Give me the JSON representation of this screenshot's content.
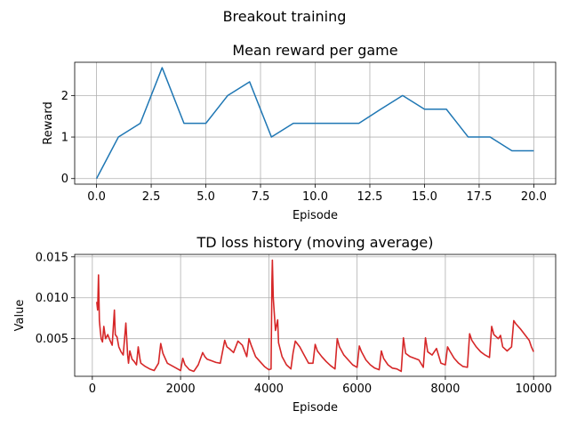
{
  "figure": {
    "title": "Breakout training"
  },
  "chart_data": [
    {
      "type": "line",
      "title": "Mean reward per game",
      "xlabel": "Episode",
      "ylabel": "Reward",
      "xlim": [
        -1.0,
        21.0
      ],
      "ylim": [
        -0.134,
        2.8
      ],
      "grid": true,
      "xticks": [
        0.0,
        2.5,
        5.0,
        7.5,
        10.0,
        12.5,
        15.0,
        17.5,
        20.0
      ],
      "xtick_labels": [
        "0.0",
        "2.5",
        "5.0",
        "7.5",
        "10.0",
        "12.5",
        "15.0",
        "17.5",
        "20.0"
      ],
      "yticks": [
        0,
        1,
        2
      ],
      "ytick_labels": [
        "0",
        "1",
        "2"
      ],
      "series": [
        {
          "color": "#1f77b4",
          "x": [
            0,
            1,
            2,
            3,
            4,
            5,
            6,
            7,
            8,
            9,
            10,
            11,
            12,
            13,
            14,
            15,
            16,
            17,
            18,
            19,
            20
          ],
          "values": [
            0,
            1.0,
            1.33,
            2.67,
            1.33,
            1.33,
            2.0,
            2.33,
            1.0,
            1.33,
            1.33,
            1.33,
            1.33,
            1.67,
            2.0,
            1.67,
            1.67,
            1.0,
            1.0,
            0.67,
            0.67
          ]
        }
      ]
    },
    {
      "type": "line",
      "title": "TD loss history (moving average)",
      "xlabel": "Episode",
      "ylabel": "Value",
      "xlim": [
        -400,
        10500
      ],
      "ylim": [
        0.0004,
        0.0153
      ],
      "grid": true,
      "xticks": [
        0,
        2000,
        4000,
        6000,
        8000,
        10000
      ],
      "xtick_labels": [
        "0",
        "2000",
        "4000",
        "6000",
        "8000",
        "10000"
      ],
      "yticks": [
        0.005,
        0.01,
        0.015
      ],
      "ytick_labels": [
        "0.005",
        "0.010",
        "0.015"
      ],
      "series": [
        {
          "color": "#d62728",
          "x": [
            100,
            120,
            140,
            160,
            180,
            200,
            230,
            260,
            300,
            350,
            400,
            450,
            500,
            520,
            560,
            600,
            650,
            700,
            760,
            800,
            820,
            850,
            900,
            950,
            1000,
            1040,
            1080,
            1100,
            1200,
            1300,
            1400,
            1500,
            1550,
            1600,
            1700,
            1800,
            1900,
            2000,
            2050,
            2100,
            2200,
            2300,
            2400,
            2500,
            2550,
            2600,
            2700,
            2800,
            2900,
            3000,
            3050,
            3100,
            3200,
            3300,
            3400,
            3500,
            3550,
            3600,
            3700,
            3800,
            3900,
            4000,
            4050,
            4070,
            4080,
            4100,
            4150,
            4200,
            4220,
            4300,
            4400,
            4500,
            4550,
            4600,
            4700,
            4800,
            4900,
            5000,
            5050,
            5100,
            5200,
            5300,
            5400,
            5500,
            5550,
            5600,
            5700,
            5800,
            5900,
            6000,
            6050,
            6100,
            6200,
            6300,
            6400,
            6500,
            6550,
            6600,
            6700,
            6800,
            6900,
            7000,
            7050,
            7100,
            7200,
            7300,
            7400,
            7500,
            7550,
            7600,
            7700,
            7800,
            7900,
            8000,
            8050,
            8100,
            8200,
            8300,
            8400,
            8500,
            8550,
            8600,
            8700,
            8800,
            8900,
            9000,
            9050,
            9100,
            9200,
            9250,
            9300,
            9400,
            9500,
            9550,
            9600,
            9700,
            9800,
            9900,
            9950,
            10000
          ],
          "values": [
            0.0095,
            0.0085,
            0.0128,
            0.0072,
            0.006,
            0.005,
            0.0046,
            0.0065,
            0.005,
            0.0055,
            0.0048,
            0.0042,
            0.0085,
            0.0055,
            0.0052,
            0.004,
            0.0034,
            0.003,
            0.0069,
            0.003,
            0.002,
            0.0035,
            0.0025,
            0.0022,
            0.0018,
            0.004,
            0.0025,
            0.002,
            0.0016,
            0.0013,
            0.0011,
            0.002,
            0.0044,
            0.0032,
            0.002,
            0.0017,
            0.0014,
            0.0011,
            0.0026,
            0.0018,
            0.0012,
            0.001,
            0.0018,
            0.0033,
            0.0028,
            0.0025,
            0.0023,
            0.0021,
            0.002,
            0.0048,
            0.004,
            0.0038,
            0.0033,
            0.0047,
            0.0042,
            0.0028,
            0.005,
            0.0042,
            0.0028,
            0.0022,
            0.0016,
            0.0012,
            0.0013,
            0.012,
            0.0146,
            0.01,
            0.006,
            0.0073,
            0.0045,
            0.0028,
            0.0018,
            0.0013,
            0.0033,
            0.0047,
            0.004,
            0.003,
            0.002,
            0.002,
            0.0043,
            0.0035,
            0.0028,
            0.0022,
            0.0017,
            0.0013,
            0.005,
            0.004,
            0.003,
            0.0024,
            0.0018,
            0.0015,
            0.0041,
            0.0034,
            0.0024,
            0.0018,
            0.0014,
            0.0012,
            0.0035,
            0.0026,
            0.0018,
            0.0014,
            0.0013,
            0.001,
            0.0051,
            0.0032,
            0.0028,
            0.0026,
            0.0024,
            0.0015,
            0.0051,
            0.0034,
            0.003,
            0.0038,
            0.002,
            0.0018,
            0.004,
            0.0035,
            0.0026,
            0.002,
            0.0016,
            0.0015,
            0.0056,
            0.0048,
            0.004,
            0.0034,
            0.003,
            0.0027,
            0.0065,
            0.0055,
            0.005,
            0.0054,
            0.004,
            0.0035,
            0.004,
            0.0072,
            0.0068,
            0.0062,
            0.0055,
            0.0048,
            0.004,
            0.0034
          ]
        }
      ]
    }
  ]
}
